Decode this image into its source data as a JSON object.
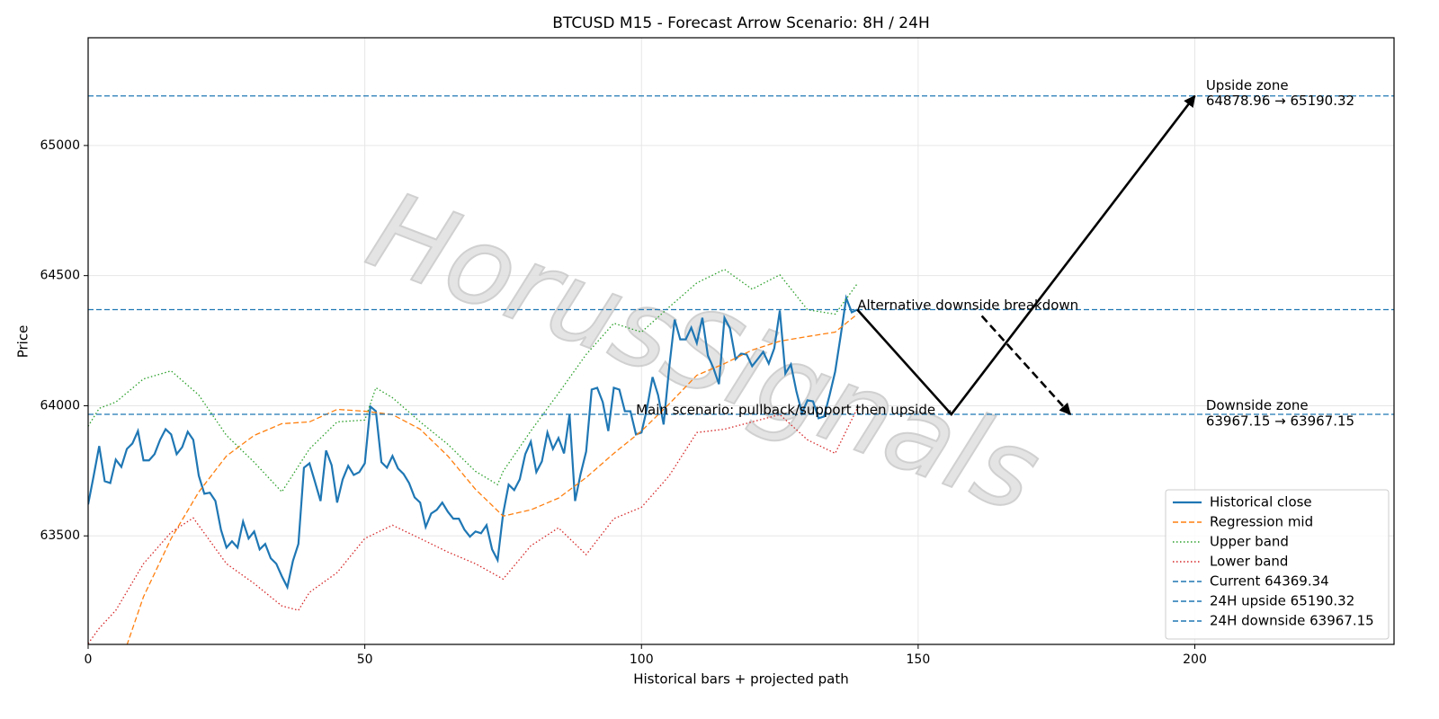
{
  "chart_data": {
    "type": "line",
    "title": "BTCUSD M15 - Forecast Arrow Scenario: 8H / 24H",
    "xlabel": "Historical bars + projected path",
    "ylabel": "Price",
    "xlim": [
      0,
      236
    ],
    "ylim": [
      63083,
      65414
    ],
    "xticks": [
      0,
      50,
      100,
      150,
      200
    ],
    "yticks": [
      63500,
      64000,
      64500,
      65000
    ],
    "grid": true,
    "legend": "lower right",
    "watermark": "HorusSignals",
    "series": [
      {
        "name": "Historical close",
        "color": "#1f77b4",
        "style": "solid",
        "x": [
          0,
          1,
          2,
          3,
          4,
          5,
          6,
          7,
          8,
          9,
          10,
          11,
          12,
          13,
          14,
          15,
          16,
          17,
          18,
          19,
          20,
          21,
          22,
          23,
          24,
          25,
          26,
          27,
          28,
          29,
          30,
          31,
          32,
          33,
          34,
          35,
          36,
          37,
          38,
          39,
          40,
          41,
          42,
          43,
          44,
          45,
          46,
          47,
          48,
          49,
          50,
          51,
          52,
          53,
          54,
          55,
          56,
          57,
          58,
          59,
          60,
          61,
          62,
          63,
          64,
          65,
          66,
          67,
          68,
          69,
          70,
          71,
          72,
          73,
          74,
          75,
          76,
          77,
          78,
          79,
          80,
          81,
          82,
          83,
          84,
          85,
          86,
          87,
          88,
          89,
          90,
          91,
          92,
          93,
          94,
          95,
          96,
          97,
          98,
          99,
          100,
          101,
          102,
          103,
          104,
          105,
          106,
          107,
          108,
          109,
          110,
          111,
          112,
          113,
          114,
          115,
          116,
          117,
          118,
          119,
          120,
          121,
          122,
          123,
          124,
          125,
          126,
          127,
          128,
          129,
          130,
          131,
          132,
          133,
          134,
          135,
          136,
          137,
          138,
          139
        ],
        "values": [
          63621,
          63731,
          63845,
          63710,
          63703,
          63793,
          63765,
          63834,
          63855,
          63903,
          63790,
          63790,
          63814,
          63869,
          63910,
          63890,
          63814,
          63841,
          63900,
          63869,
          63731,
          63662,
          63666,
          63634,
          63524,
          63455,
          63479,
          63455,
          63555,
          63490,
          63517,
          63448,
          63469,
          63414,
          63393,
          63345,
          63303,
          63403,
          63469,
          63762,
          63779,
          63707,
          63634,
          63828,
          63772,
          63628,
          63717,
          63769,
          63734,
          63745,
          63779,
          63997,
          63979,
          63783,
          63762,
          63807,
          63759,
          63738,
          63703,
          63648,
          63628,
          63534,
          63586,
          63600,
          63628,
          63593,
          63566,
          63566,
          63524,
          63497,
          63517,
          63510,
          63541,
          63448,
          63407,
          63586,
          63697,
          63676,
          63717,
          63814,
          63862,
          63745,
          63786,
          63897,
          63834,
          63876,
          63817,
          63966,
          63634,
          63738,
          63824,
          64062,
          64069,
          64014,
          63903,
          64069,
          64062,
          63979,
          63979,
          63890,
          63897,
          63990,
          64110,
          64041,
          63928,
          64145,
          64331,
          64255,
          64255,
          64300,
          64241,
          64338,
          64193,
          64145,
          64083,
          64338,
          64297,
          64179,
          64200,
          64197,
          64152,
          64179,
          64207,
          64162,
          64221,
          64366,
          64124,
          64159,
          64055,
          63972,
          64021,
          64017,
          63952,
          63959,
          64041,
          64131,
          64269,
          64414,
          64359,
          64369.34
        ]
      },
      {
        "name": "Regression mid",
        "color": "#ff7f0e",
        "style": "dashed",
        "x": [
          7,
          10,
          15,
          20,
          25,
          30,
          35,
          40,
          45,
          50,
          55,
          60,
          65,
          70,
          75,
          80,
          85,
          90,
          95,
          100,
          105,
          110,
          115,
          120,
          125,
          130,
          135,
          139
        ],
        "values": [
          63080,
          63266,
          63490,
          63669,
          63807,
          63886,
          63931,
          63938,
          63986,
          63979,
          63966,
          63910,
          63807,
          63679,
          63576,
          63600,
          63645,
          63724,
          63817,
          63903,
          64007,
          64117,
          64162,
          64214,
          64248,
          64266,
          64283,
          64352
        ]
      },
      {
        "name": "Upper band",
        "color": "#2ca02c",
        "style": "dotted",
        "x": [
          0,
          2,
          5,
          10,
          15,
          20,
          25,
          30,
          35,
          40,
          45,
          50,
          52,
          55,
          60,
          65,
          70,
          74,
          75,
          80,
          85,
          90,
          95,
          100,
          105,
          110,
          115,
          120,
          125,
          130,
          135,
          139
        ],
        "values": [
          63921,
          63990,
          64014,
          64103,
          64134,
          64041,
          63886,
          63783,
          63669,
          63834,
          63938,
          63945,
          64069,
          64031,
          63938,
          63852,
          63748,
          63697,
          63748,
          63903,
          64048,
          64197,
          64317,
          64283,
          64379,
          64472,
          64524,
          64448,
          64503,
          64369,
          64352,
          64469
        ]
      },
      {
        "name": "Lower band",
        "color": "#d62728",
        "style": "dotted",
        "x": [
          0,
          2,
          5,
          10,
          15,
          19,
          25,
          30,
          35,
          38,
          40,
          45,
          50,
          55,
          60,
          65,
          70,
          75,
          80,
          85,
          90,
          95,
          100,
          105,
          110,
          115,
          120,
          125,
          130,
          135,
          139
        ],
        "values": [
          63086,
          63145,
          63214,
          63393,
          63514,
          63569,
          63393,
          63317,
          63231,
          63214,
          63283,
          63359,
          63490,
          63541,
          63490,
          63438,
          63393,
          63334,
          63462,
          63531,
          63428,
          63566,
          63610,
          63731,
          63897,
          63910,
          63938,
          63966,
          63869,
          63817,
          63990
        ]
      }
    ],
    "hlines": [
      {
        "name": "Current 64369.34",
        "value": 64369.34,
        "color": "#1f77b4"
      },
      {
        "name": "24H upside 65190.32",
        "value": 65190.32,
        "color": "#1f77b4"
      },
      {
        "name": "24H downside 63967.15",
        "value": 63967.15,
        "color": "#1f77b4"
      }
    ],
    "arrows": [
      {
        "style": "solid",
        "x": [
          139,
          156,
          200
        ],
        "y": [
          64369.34,
          63967.15,
          65190.32
        ]
      },
      {
        "style": "dashed",
        "x": [
          161.5,
          177.5
        ],
        "y": [
          64345,
          63967.15
        ]
      }
    ],
    "annotations": [
      {
        "text": "Main scenario: pullback/support then upside",
        "x": 99,
        "y": 63983
      },
      {
        "text": "Alternative downside breakdown",
        "x": 139,
        "y": 64385
      },
      {
        "text": "Upside zone",
        "x": 202,
        "y": 65230
      },
      {
        "text": "64878.96 → 65190.32",
        "x": 202,
        "y": 65170
      },
      {
        "text": "Downside zone",
        "x": 202,
        "y": 64000
      },
      {
        "text": "63967.15 → 63967.15",
        "x": 202,
        "y": 63940
      }
    ]
  }
}
